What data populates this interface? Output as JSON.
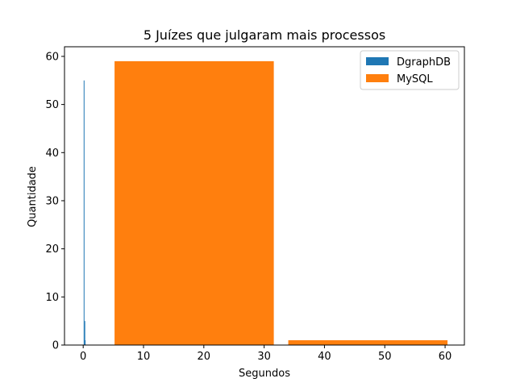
{
  "chart_data": {
    "type": "bar",
    "title": "5 Juízes que julgaram mais processos",
    "xlabel": "Segundos",
    "ylabel": "Quantidade",
    "xlim": [
      -3.1,
      63.2
    ],
    "ylim": [
      0,
      62
    ],
    "xticks": [
      0,
      10,
      20,
      30,
      40,
      50,
      60
    ],
    "yticks": [
      0,
      10,
      20,
      30,
      40,
      50,
      60
    ],
    "grid": false,
    "legend_position": "top-right",
    "series": [
      {
        "name": "DgraphDB",
        "color": "#1f77b4",
        "bins": [
          {
            "x0": 0.08,
            "x1": 0.14,
            "value": 55
          },
          {
            "x0": 0.2,
            "x1": 0.26,
            "value": 5
          },
          {
            "x0": 0.26,
            "x1": 0.32,
            "value": 1
          }
        ]
      },
      {
        "name": "MySQL",
        "color": "#ff7f0e",
        "bins": [
          {
            "x0": 5.2,
            "x1": 31.6,
            "value": 59
          },
          {
            "x0": 34.0,
            "x1": 60.4,
            "value": 1
          }
        ]
      }
    ]
  }
}
